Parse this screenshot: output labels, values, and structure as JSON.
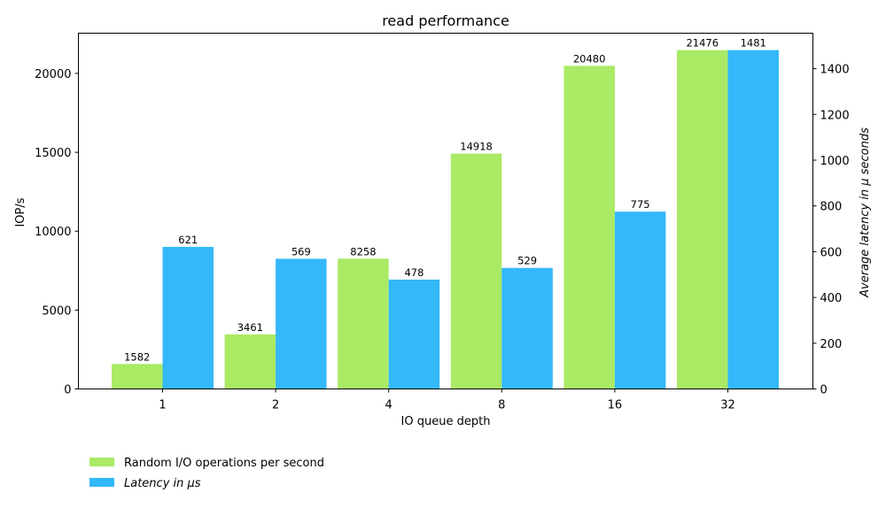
{
  "chart_data": {
    "type": "bar",
    "title": "read performance",
    "xlabel": "IO queue depth",
    "ylabel_left": "IOP/s",
    "ylabel_right": "Average latency in μ seconds",
    "categories": [
      "1",
      "2",
      "4",
      "8",
      "16",
      "32"
    ],
    "series": [
      {
        "name": "Random I/O operations per second",
        "axis": "left",
        "color": "#aaea65",
        "values": [
          1582,
          3461,
          8258,
          14918,
          20480,
          21476
        ]
      },
      {
        "name": "Latency in μs",
        "axis": "right",
        "color": "#34b8fa",
        "values": [
          621,
          569,
          478,
          529,
          775,
          1481
        ]
      }
    ],
    "ylim_left": [
      0,
      22550
    ],
    "ylim_right": [
      0,
      1555
    ],
    "yticks_left": [
      0,
      5000,
      10000,
      15000,
      20000
    ],
    "yticks_right": [
      0,
      200,
      400,
      600,
      800,
      1000,
      1200,
      1400
    ],
    "grid": false,
    "legend_position": "bottom-left",
    "data_labels": true
  }
}
